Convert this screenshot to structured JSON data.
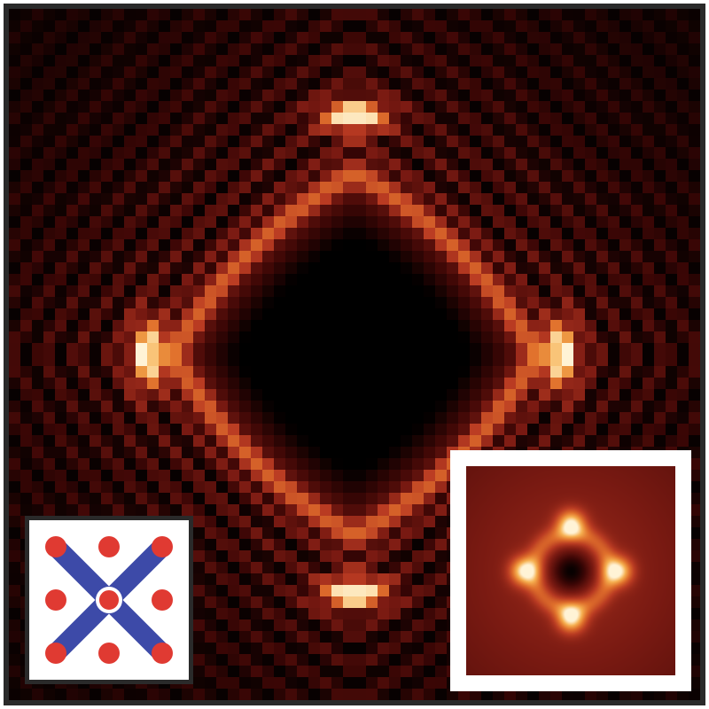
{
  "image": {
    "colormap": [
      "#000000",
      "#3a0605",
      "#7a1a12",
      "#b83a22",
      "#e0702c",
      "#f6b050",
      "#fff3d6"
    ],
    "background": "#ffffff",
    "frame_color": "#2a2a2a"
  },
  "main_panel": {
    "description_free": true,
    "rings": 9,
    "bright_spots": [
      "top",
      "right",
      "bottom",
      "left"
    ]
  },
  "lattice_inset": {
    "dot_color": "#e03a32",
    "bond_color": "#3d4aa8",
    "grid": "3x3"
  },
  "smooth_inset": {
    "lobes": 4
  }
}
